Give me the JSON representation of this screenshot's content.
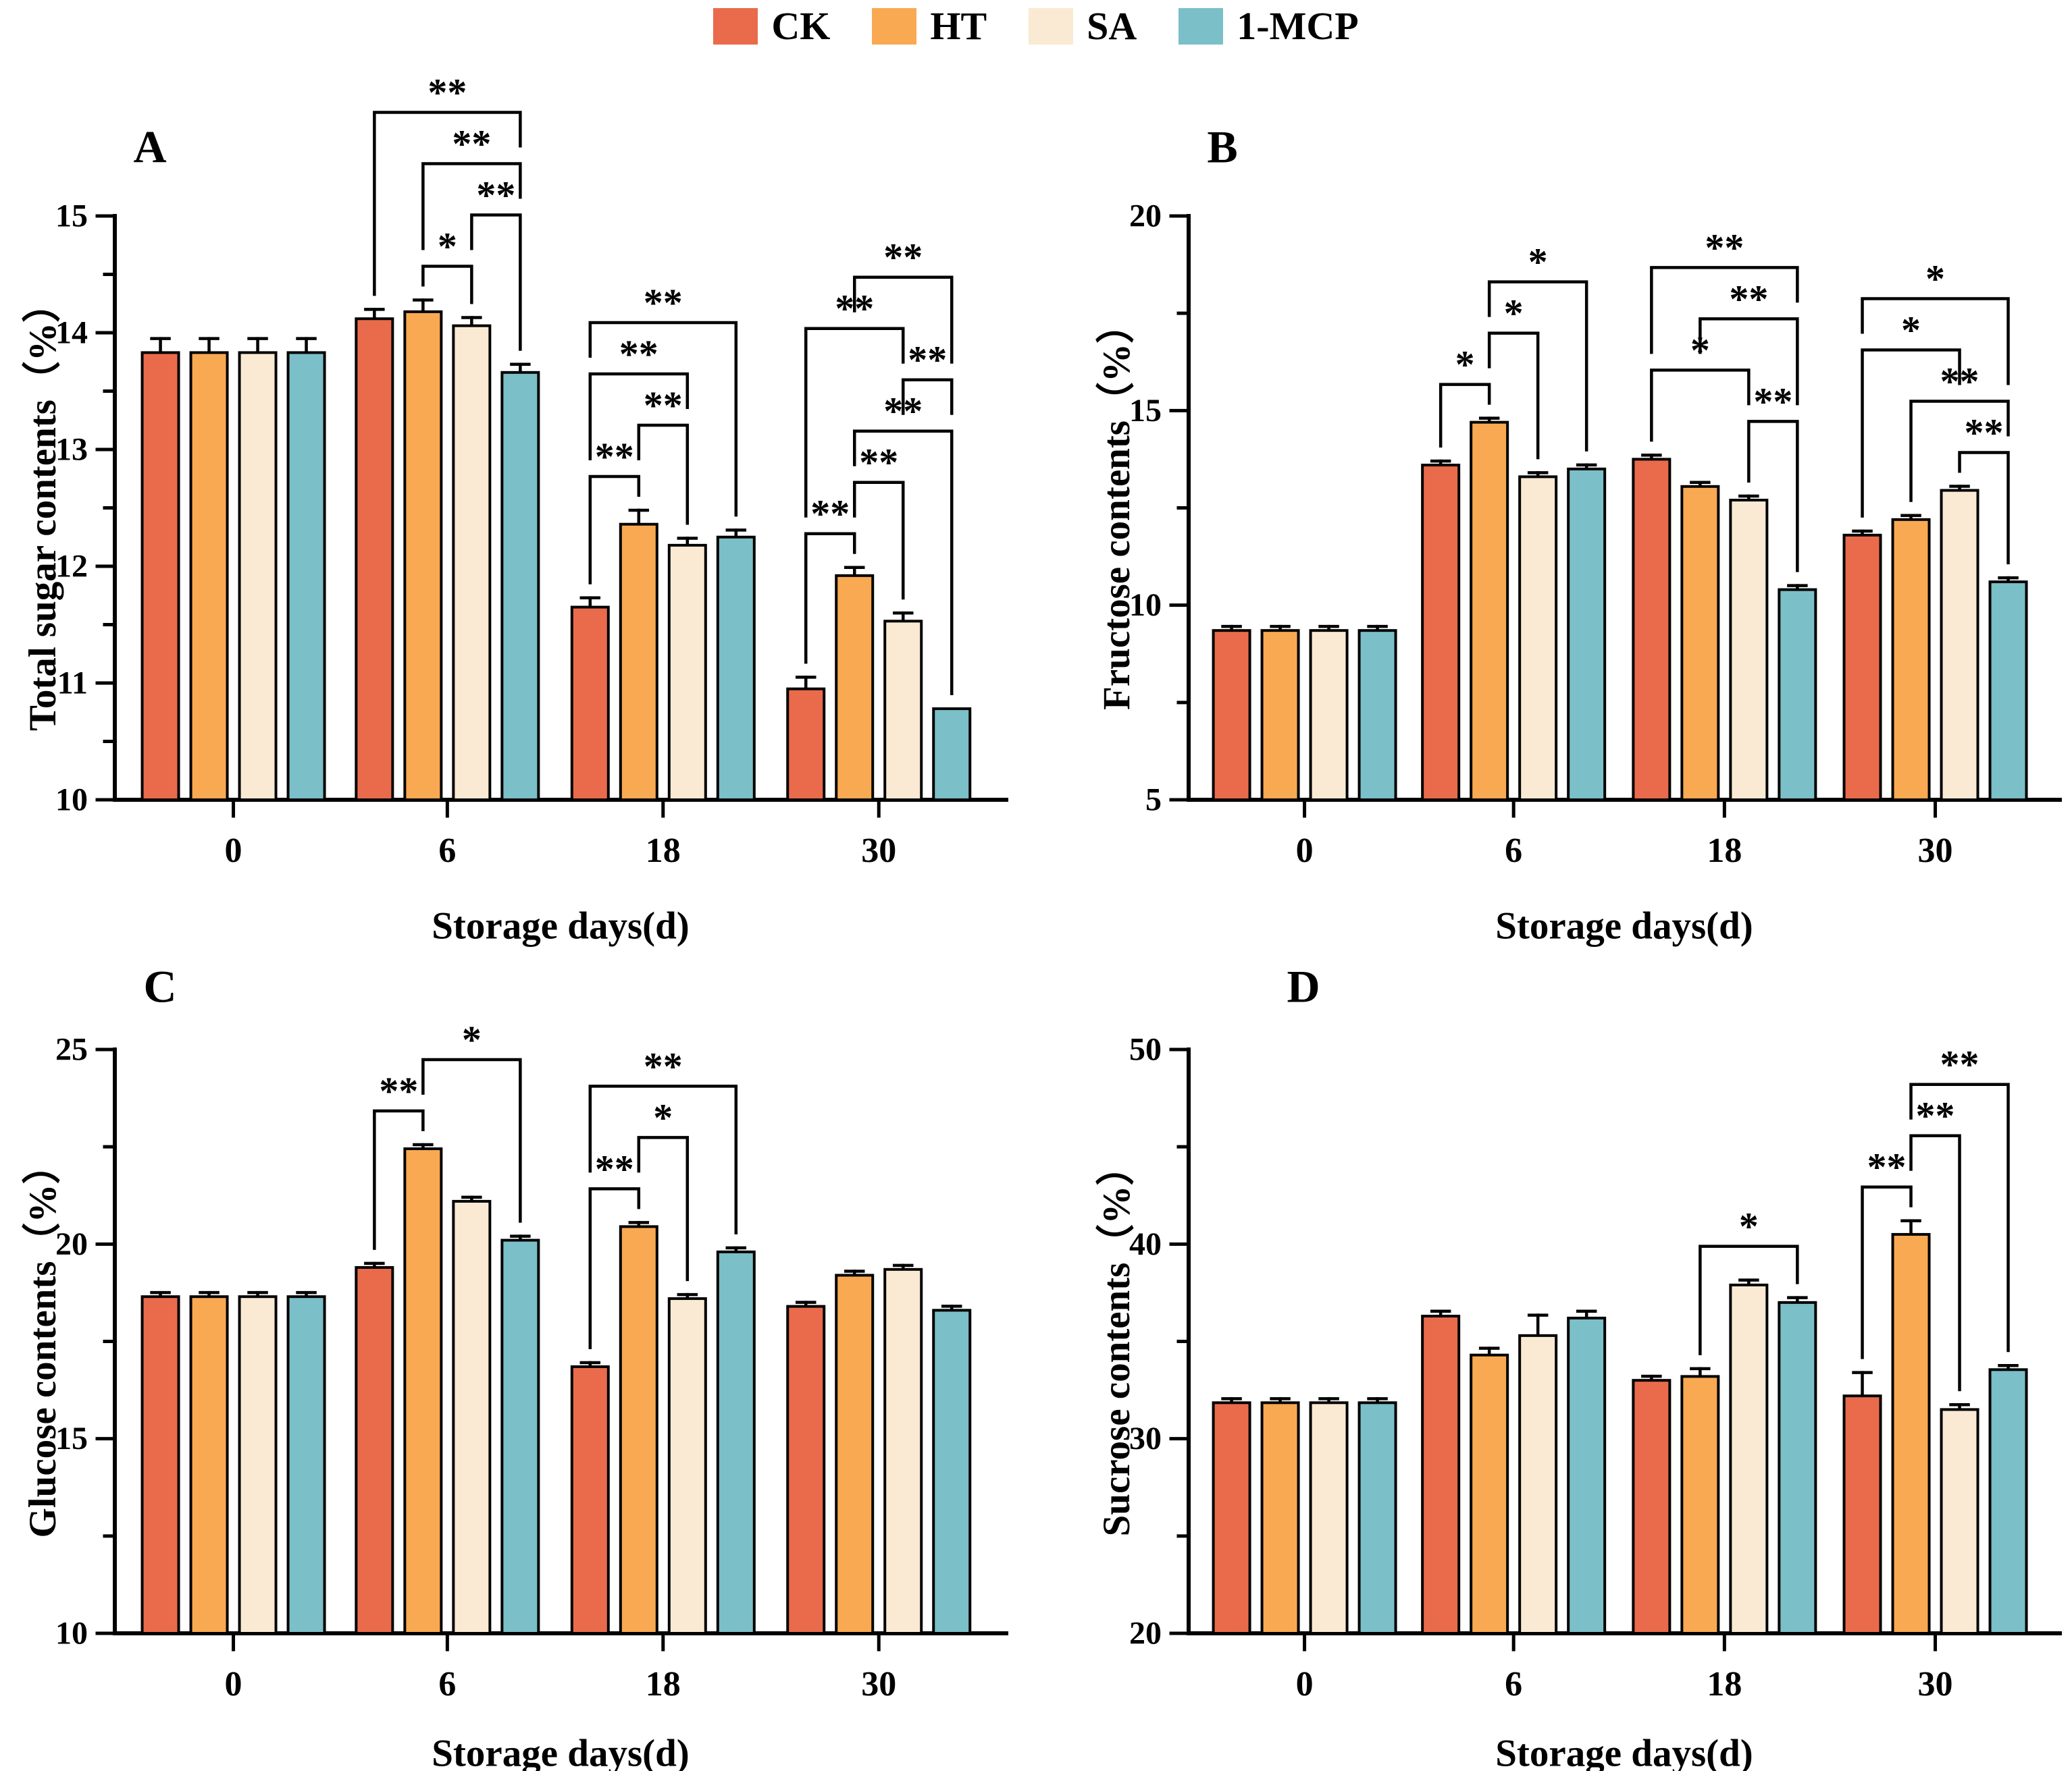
{
  "legend": {
    "items": [
      {
        "label": "CK",
        "color": "#E96B4B"
      },
      {
        "label": "HT",
        "color": "#F8A952"
      },
      {
        "label": "SA",
        "color": "#FAEAD3"
      },
      {
        "label": "1-MCP",
        "color": "#7BBFC8"
      }
    ]
  },
  "chart_data": [
    {
      "type": "bar",
      "letter": "A",
      "ylabel": "Total sugar contents（%）",
      "xlabel": "Storage days(d)",
      "categories": [
        "0",
        "6",
        "18",
        "30"
      ],
      "ylim": [
        10,
        15
      ],
      "yticks": [
        10,
        11,
        12,
        13,
        14,
        15
      ],
      "yminor": 0.5,
      "series": [
        {
          "name": "CK",
          "values": [
            13.83,
            14.12,
            11.65,
            10.95
          ],
          "errors": [
            0.12,
            0.08,
            0.08,
            0.1
          ]
        },
        {
          "name": "HT",
          "values": [
            13.83,
            14.18,
            12.36,
            11.92
          ],
          "errors": [
            0.12,
            0.1,
            0.12,
            0.07
          ]
        },
        {
          "name": "SA",
          "values": [
            13.83,
            14.06,
            12.18,
            11.53
          ],
          "errors": [
            0.12,
            0.07,
            0.06,
            0.07
          ]
        },
        {
          "name": "1-MCP",
          "values": [
            13.83,
            13.66,
            12.25,
            10.78
          ],
          "errors": [
            0.12,
            0.07,
            0.06,
            0
          ]
        }
      ],
      "brackets": [
        {
          "g": 1,
          "a": 1,
          "b": 2,
          "t": "*",
          "l": 0
        },
        {
          "g": 1,
          "a": 2,
          "b": 3,
          "t": "**",
          "l": 1
        },
        {
          "g": 1,
          "a": 1,
          "b": 3,
          "t": "**",
          "l": 2
        },
        {
          "g": 1,
          "a": 0,
          "b": 3,
          "t": "**",
          "l": 3
        },
        {
          "g": 2,
          "a": 0,
          "b": 1,
          "t": "**",
          "l": 0
        },
        {
          "g": 2,
          "a": 1,
          "b": 2,
          "t": "**",
          "l": 1
        },
        {
          "g": 2,
          "a": 0,
          "b": 2,
          "t": "**",
          "l": 2
        },
        {
          "g": 2,
          "a": 0,
          "b": 3,
          "t": "**",
          "l": 3
        },
        {
          "g": 3,
          "a": 0,
          "b": 1,
          "t": "**",
          "l": 0
        },
        {
          "g": 3,
          "a": 1,
          "b": 2,
          "t": "**",
          "l": 1
        },
        {
          "g": 3,
          "a": 1,
          "b": 3,
          "t": "**",
          "l": 2
        },
        {
          "g": 3,
          "a": 2,
          "b": 3,
          "t": "**",
          "l": 3
        },
        {
          "g": 3,
          "a": 0,
          "b": 2,
          "t": "**",
          "l": 4
        },
        {
          "g": 3,
          "a": 1,
          "b": 3,
          "t": "**",
          "l": 5
        }
      ]
    },
    {
      "type": "bar",
      "letter": "B",
      "ylabel": "Fructose contents（%）",
      "xlabel": "Storage days(d)",
      "categories": [
        "0",
        "6",
        "18",
        "30"
      ],
      "ylim": [
        5,
        20
      ],
      "yticks": [
        5,
        10,
        15,
        20
      ],
      "yminor": 2.5,
      "series": [
        {
          "name": "CK",
          "values": [
            9.35,
            13.6,
            13.75,
            11.8
          ],
          "errors": [
            0.05,
            0.06,
            0.06,
            0.05
          ]
        },
        {
          "name": "HT",
          "values": [
            9.35,
            14.7,
            13.05,
            12.2
          ],
          "errors": [
            0.05,
            0.06,
            0.05,
            0.05
          ]
        },
        {
          "name": "SA",
          "values": [
            9.35,
            13.3,
            12.7,
            12.95
          ],
          "errors": [
            0.05,
            0.06,
            0.05,
            0.07
          ]
        },
        {
          "name": "1-MCP",
          "values": [
            9.35,
            13.5,
            10.4,
            10.6
          ],
          "errors": [
            0.05,
            0.05,
            0.07,
            0.05
          ]
        }
      ],
      "brackets": [
        {
          "g": 1,
          "a": 0,
          "b": 1,
          "t": "*",
          "l": 0
        },
        {
          "g": 1,
          "a": 1,
          "b": 2,
          "t": "*",
          "l": 1
        },
        {
          "g": 1,
          "a": 1,
          "b": 3,
          "t": "*",
          "l": 2
        },
        {
          "g": 2,
          "a": 2,
          "b": 3,
          "t": "**",
          "l": 0
        },
        {
          "g": 2,
          "a": 0,
          "b": 2,
          "t": "*",
          "l": 1
        },
        {
          "g": 2,
          "a": 1,
          "b": 3,
          "t": "**",
          "l": 2
        },
        {
          "g": 2,
          "a": 0,
          "b": 3,
          "t": "**",
          "l": 3
        },
        {
          "g": 3,
          "a": 2,
          "b": 3,
          "t": "**",
          "l": 0
        },
        {
          "g": 3,
          "a": 1,
          "b": 3,
          "t": "**",
          "l": 1
        },
        {
          "g": 3,
          "a": 0,
          "b": 2,
          "t": "*",
          "l": 2
        },
        {
          "g": 3,
          "a": 0,
          "b": 3,
          "t": "*",
          "l": 3
        }
      ]
    },
    {
      "type": "bar",
      "letter": "C",
      "ylabel": "Glucose contents（%）",
      "xlabel": "Storage days(d)",
      "categories": [
        "0",
        "6",
        "18",
        "30"
      ],
      "ylim": [
        10,
        25
      ],
      "yticks": [
        10,
        15,
        20,
        25
      ],
      "yminor": 2.5,
      "series": [
        {
          "name": "CK",
          "values": [
            18.65,
            19.4,
            16.85,
            18.4
          ],
          "errors": [
            0.06,
            0.07,
            0.06,
            0.05
          ]
        },
        {
          "name": "HT",
          "values": [
            18.65,
            22.45,
            20.45,
            19.2
          ],
          "errors": [
            0.06,
            0.08,
            0.06,
            0.05
          ]
        },
        {
          "name": "SA",
          "values": [
            18.65,
            21.1,
            18.6,
            19.35
          ],
          "errors": [
            0.06,
            0.05,
            0.06,
            0.05
          ]
        },
        {
          "name": "1-MCP",
          "values": [
            18.65,
            20.1,
            19.8,
            18.3
          ],
          "errors": [
            0.06,
            0.07,
            0.05,
            0.05
          ]
        }
      ],
      "brackets": [
        {
          "g": 1,
          "a": 0,
          "b": 1,
          "t": "**",
          "l": 0
        },
        {
          "g": 1,
          "a": 1,
          "b": 3,
          "t": "*",
          "l": 1
        },
        {
          "g": 2,
          "a": 0,
          "b": 1,
          "t": "**",
          "l": 0
        },
        {
          "g": 2,
          "a": 1,
          "b": 2,
          "t": "*",
          "l": 1
        },
        {
          "g": 2,
          "a": 0,
          "b": 3,
          "t": "**",
          "l": 2
        }
      ]
    },
    {
      "type": "bar",
      "letter": "D",
      "ylabel": "Sucrose contents（%）",
      "xlabel": "Storage days(d)",
      "categories": [
        "0",
        "6",
        "18",
        "30"
      ],
      "ylim": [
        20,
        50
      ],
      "yticks": [
        20,
        30,
        40,
        50
      ],
      "yminor": 5,
      "series": [
        {
          "name": "CK",
          "values": [
            31.85,
            36.3,
            33.0,
            32.2
          ],
          "errors": [
            0.15,
            0.25,
            0.2,
            1.2
          ]
        },
        {
          "name": "HT",
          "values": [
            31.85,
            34.3,
            33.2,
            40.5
          ],
          "errors": [
            0.15,
            0.35,
            0.4,
            0.7
          ]
        },
        {
          "name": "SA",
          "values": [
            31.85,
            35.3,
            37.9,
            31.5
          ],
          "errors": [
            0.15,
            1.05,
            0.25,
            0.25
          ]
        },
        {
          "name": "1-MCP",
          "values": [
            31.85,
            36.2,
            37.0,
            33.55
          ],
          "errors": [
            0.15,
            0.35,
            0.25,
            0.2
          ]
        }
      ],
      "brackets": [
        {
          "g": 2,
          "a": 1,
          "b": 3,
          "t": "*",
          "l": 0
        },
        {
          "g": 3,
          "a": 0,
          "b": 1,
          "t": "**",
          "l": 0
        },
        {
          "g": 3,
          "a": 1,
          "b": 2,
          "t": "**",
          "l": 1
        },
        {
          "g": 3,
          "a": 1,
          "b": 3,
          "t": "**",
          "l": 2
        }
      ]
    }
  ]
}
